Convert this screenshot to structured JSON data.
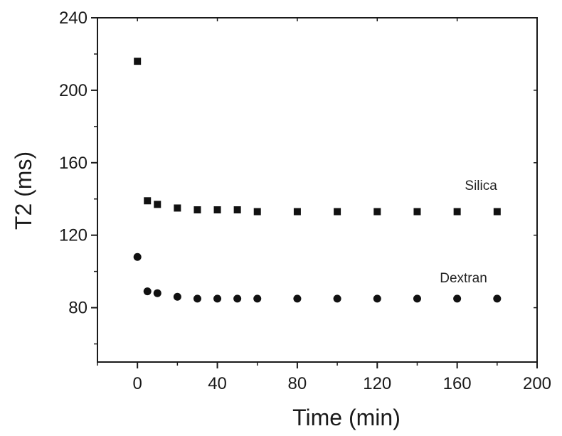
{
  "chart_data": {
    "type": "scatter",
    "title": "",
    "xlabel": "Time (min)",
    "ylabel": "T2 (ms)",
    "xlim": [
      -20,
      200
    ],
    "ylim": [
      50,
      240
    ],
    "x_ticks": [
      0,
      40,
      80,
      120,
      160,
      200
    ],
    "y_ticks": [
      80,
      120,
      160,
      200,
      240
    ],
    "x_tick_labels": [
      "0",
      "40",
      "80",
      "120",
      "160",
      "200"
    ],
    "y_tick_labels": [
      "80",
      "120",
      "160",
      "200",
      "240"
    ],
    "grid": false,
    "legend": "none (series labeled inline)",
    "series": [
      {
        "name": "Silica",
        "marker": "square",
        "color": "#111111",
        "x": [
          0,
          5,
          10,
          20,
          30,
          40,
          50,
          60,
          80,
          100,
          120,
          140,
          160,
          180
        ],
        "y": [
          216,
          139,
          137,
          135,
          134,
          134,
          134,
          133,
          133,
          133,
          133,
          133,
          133,
          133
        ]
      },
      {
        "name": "Dextran",
        "marker": "circle",
        "color": "#111111",
        "x": [
          0,
          5,
          10,
          20,
          30,
          40,
          50,
          60,
          80,
          100,
          120,
          140,
          160,
          180
        ],
        "y": [
          108,
          89,
          88,
          86,
          85,
          85,
          85,
          85,
          85,
          85,
          85,
          85,
          85,
          85
        ]
      }
    ]
  }
}
